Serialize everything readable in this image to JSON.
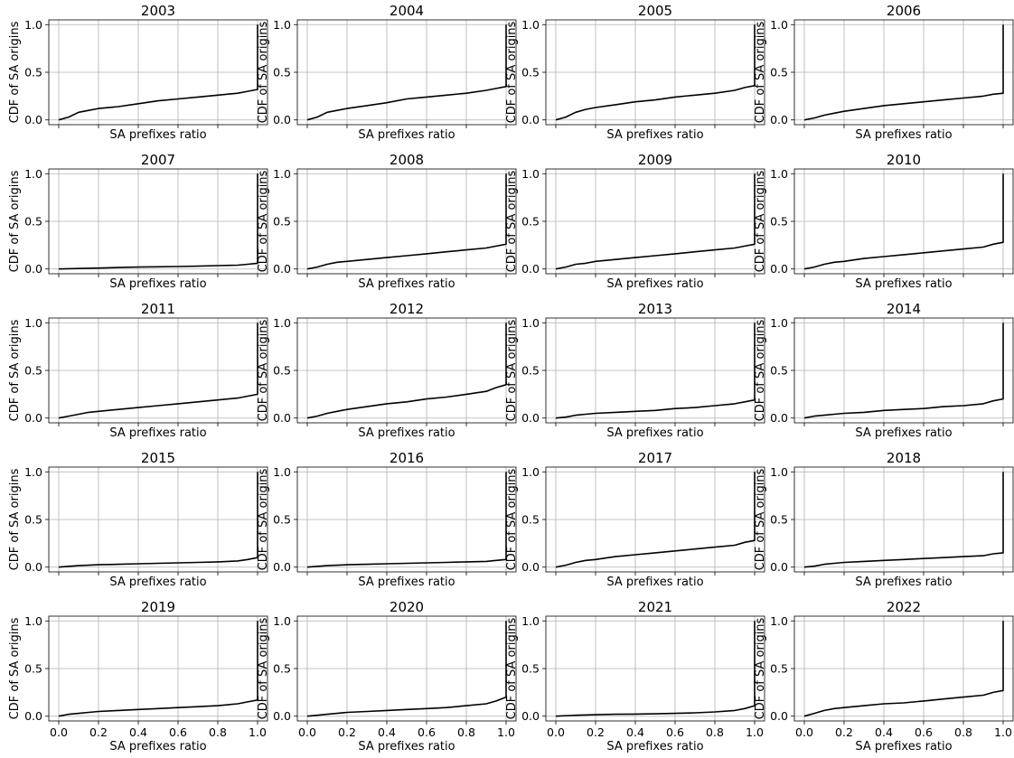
{
  "chart_data": [
    {
      "type": "line",
      "title": "2003",
      "xlabel": "SA prefixes ratio",
      "ylabel": "CDF of SA origins",
      "xlim": [
        0,
        1
      ],
      "ylim": [
        0,
        1
      ],
      "xticks": [
        "0.0",
        "0.2",
        "0.4",
        "0.6",
        "0.8",
        "1.0"
      ],
      "yticks": [
        "0.0",
        "0.5",
        "1.0"
      ],
      "grid": true,
      "x": [
        0.0,
        0.05,
        0.1,
        0.15,
        0.2,
        0.3,
        0.4,
        0.5,
        0.6,
        0.7,
        0.8,
        0.9,
        0.95,
        1.0,
        1.0
      ],
      "y": [
        0.0,
        0.03,
        0.08,
        0.1,
        0.12,
        0.14,
        0.17,
        0.2,
        0.22,
        0.24,
        0.26,
        0.28,
        0.3,
        0.32,
        1.0
      ]
    },
    {
      "type": "line",
      "title": "2004",
      "xlabel": "SA prefixes ratio",
      "ylabel": "CDF of SA origins",
      "xlim": [
        0,
        1
      ],
      "ylim": [
        0,
        1
      ],
      "xticks": [
        "0.0",
        "0.2",
        "0.4",
        "0.6",
        "0.8",
        "1.0"
      ],
      "yticks": [
        "0.0",
        "0.5",
        "1.0"
      ],
      "grid": true,
      "x": [
        0.0,
        0.05,
        0.1,
        0.15,
        0.2,
        0.3,
        0.4,
        0.5,
        0.6,
        0.7,
        0.8,
        0.9,
        0.95,
        1.0,
        1.0
      ],
      "y": [
        0.0,
        0.03,
        0.08,
        0.1,
        0.12,
        0.15,
        0.18,
        0.22,
        0.24,
        0.26,
        0.28,
        0.31,
        0.33,
        0.35,
        1.0
      ]
    },
    {
      "type": "line",
      "title": "2005",
      "xlabel": "SA prefixes ratio",
      "ylabel": "CDF of SA origins",
      "xlim": [
        0,
        1
      ],
      "ylim": [
        0,
        1
      ],
      "xticks": [
        "0.0",
        "0.2",
        "0.4",
        "0.6",
        "0.8",
        "1.0"
      ],
      "yticks": [
        "0.0",
        "0.5",
        "1.0"
      ],
      "grid": true,
      "x": [
        0.0,
        0.05,
        0.1,
        0.15,
        0.2,
        0.3,
        0.4,
        0.5,
        0.6,
        0.7,
        0.8,
        0.9,
        0.95,
        1.0,
        1.0
      ],
      "y": [
        0.0,
        0.03,
        0.08,
        0.11,
        0.13,
        0.16,
        0.19,
        0.21,
        0.24,
        0.26,
        0.28,
        0.31,
        0.34,
        0.36,
        1.0
      ]
    },
    {
      "type": "line",
      "title": "2006",
      "xlabel": "SA prefixes ratio",
      "ylabel": "CDF of SA origins",
      "xlim": [
        0,
        1
      ],
      "ylim": [
        0,
        1
      ],
      "xticks": [
        "0.0",
        "0.2",
        "0.4",
        "0.6",
        "0.8",
        "1.0"
      ],
      "yticks": [
        "0.0",
        "0.5",
        "1.0"
      ],
      "grid": true,
      "x": [
        0.0,
        0.05,
        0.1,
        0.15,
        0.2,
        0.3,
        0.4,
        0.5,
        0.6,
        0.7,
        0.8,
        0.9,
        0.95,
        1.0,
        1.0
      ],
      "y": [
        0.0,
        0.02,
        0.05,
        0.07,
        0.09,
        0.12,
        0.15,
        0.17,
        0.19,
        0.21,
        0.23,
        0.25,
        0.27,
        0.28,
        1.0
      ]
    },
    {
      "type": "line",
      "title": "2007",
      "xlabel": "SA prefixes ratio",
      "ylabel": "CDF of SA origins",
      "xlim": [
        0,
        1
      ],
      "ylim": [
        0,
        1
      ],
      "xticks": [
        "0.0",
        "0.2",
        "0.4",
        "0.6",
        "0.8",
        "1.0"
      ],
      "yticks": [
        "0.0",
        "0.5",
        "1.0"
      ],
      "grid": true,
      "x": [
        0.0,
        0.1,
        0.2,
        0.3,
        0.4,
        0.5,
        0.6,
        0.7,
        0.8,
        0.9,
        0.95,
        1.0,
        1.0
      ],
      "y": [
        0.0,
        0.005,
        0.01,
        0.015,
        0.02,
        0.023,
        0.026,
        0.03,
        0.035,
        0.04,
        0.05,
        0.06,
        1.0
      ]
    },
    {
      "type": "line",
      "title": "2008",
      "xlabel": "SA prefixes ratio",
      "ylabel": "CDF of SA origins",
      "xlim": [
        0,
        1
      ],
      "ylim": [
        0,
        1
      ],
      "xticks": [
        "0.0",
        "0.2",
        "0.4",
        "0.6",
        "0.8",
        "1.0"
      ],
      "yticks": [
        "0.0",
        "0.5",
        "1.0"
      ],
      "grid": true,
      "x": [
        0.0,
        0.05,
        0.1,
        0.15,
        0.2,
        0.3,
        0.4,
        0.5,
        0.6,
        0.7,
        0.8,
        0.9,
        0.95,
        1.0,
        1.0
      ],
      "y": [
        0.0,
        0.02,
        0.05,
        0.07,
        0.08,
        0.1,
        0.12,
        0.14,
        0.16,
        0.18,
        0.2,
        0.22,
        0.24,
        0.26,
        1.0
      ]
    },
    {
      "type": "line",
      "title": "2009",
      "xlabel": "SA prefixes ratio",
      "ylabel": "CDF of SA origins",
      "xlim": [
        0,
        1
      ],
      "ylim": [
        0,
        1
      ],
      "xticks": [
        "0.0",
        "0.2",
        "0.4",
        "0.6",
        "0.8",
        "1.0"
      ],
      "yticks": [
        "0.0",
        "0.5",
        "1.0"
      ],
      "grid": true,
      "x": [
        0.0,
        0.05,
        0.1,
        0.15,
        0.2,
        0.3,
        0.4,
        0.5,
        0.6,
        0.7,
        0.8,
        0.9,
        0.95,
        1.0,
        1.0
      ],
      "y": [
        0.0,
        0.02,
        0.05,
        0.06,
        0.08,
        0.1,
        0.12,
        0.14,
        0.16,
        0.18,
        0.2,
        0.22,
        0.24,
        0.26,
        1.0
      ]
    },
    {
      "type": "line",
      "title": "2010",
      "xlabel": "SA prefixes ratio",
      "ylabel": "CDF of SA origins",
      "xlim": [
        0,
        1
      ],
      "ylim": [
        0,
        1
      ],
      "xticks": [
        "0.0",
        "0.2",
        "0.4",
        "0.6",
        "0.8",
        "1.0"
      ],
      "yticks": [
        "0.0",
        "0.5",
        "1.0"
      ],
      "grid": true,
      "x": [
        0.0,
        0.05,
        0.1,
        0.15,
        0.2,
        0.3,
        0.4,
        0.5,
        0.6,
        0.7,
        0.8,
        0.9,
        0.95,
        1.0,
        1.0
      ],
      "y": [
        0.0,
        0.02,
        0.05,
        0.07,
        0.08,
        0.11,
        0.13,
        0.15,
        0.17,
        0.19,
        0.21,
        0.23,
        0.26,
        0.28,
        1.0
      ]
    },
    {
      "type": "line",
      "title": "2011",
      "xlabel": "SA prefixes ratio",
      "ylabel": "CDF of SA origins",
      "xlim": [
        0,
        1
      ],
      "ylim": [
        0,
        1
      ],
      "xticks": [
        "0.0",
        "0.2",
        "0.4",
        "0.6",
        "0.8",
        "1.0"
      ],
      "yticks": [
        "0.0",
        "0.5",
        "1.0"
      ],
      "grid": true,
      "x": [
        0.0,
        0.05,
        0.1,
        0.15,
        0.2,
        0.3,
        0.4,
        0.5,
        0.6,
        0.7,
        0.8,
        0.9,
        0.95,
        1.0,
        1.0
      ],
      "y": [
        0.0,
        0.02,
        0.04,
        0.06,
        0.07,
        0.09,
        0.11,
        0.13,
        0.15,
        0.17,
        0.19,
        0.21,
        0.23,
        0.25,
        1.0
      ]
    },
    {
      "type": "line",
      "title": "2012",
      "xlabel": "SA prefixes ratio",
      "ylabel": "CDF of SA origins",
      "xlim": [
        0,
        1
      ],
      "ylim": [
        0,
        1
      ],
      "xticks": [
        "0.0",
        "0.2",
        "0.4",
        "0.6",
        "0.8",
        "1.0"
      ],
      "yticks": [
        "0.0",
        "0.5",
        "1.0"
      ],
      "grid": true,
      "x": [
        0.0,
        0.05,
        0.1,
        0.15,
        0.2,
        0.3,
        0.4,
        0.5,
        0.6,
        0.7,
        0.8,
        0.9,
        0.95,
        1.0,
        1.0
      ],
      "y": [
        0.0,
        0.02,
        0.05,
        0.07,
        0.09,
        0.12,
        0.15,
        0.17,
        0.2,
        0.22,
        0.25,
        0.28,
        0.32,
        0.35,
        1.0
      ]
    },
    {
      "type": "line",
      "title": "2013",
      "xlabel": "SA prefixes ratio",
      "ylabel": "CDF of SA origins",
      "xlim": [
        0,
        1
      ],
      "ylim": [
        0,
        1
      ],
      "xticks": [
        "0.0",
        "0.2",
        "0.4",
        "0.6",
        "0.8",
        "1.0"
      ],
      "yticks": [
        "0.0",
        "0.5",
        "1.0"
      ],
      "grid": true,
      "x": [
        0.0,
        0.05,
        0.1,
        0.15,
        0.2,
        0.3,
        0.4,
        0.5,
        0.6,
        0.7,
        0.8,
        0.9,
        0.95,
        1.0,
        1.0
      ],
      "y": [
        0.0,
        0.01,
        0.03,
        0.04,
        0.05,
        0.06,
        0.07,
        0.08,
        0.1,
        0.11,
        0.13,
        0.15,
        0.17,
        0.19,
        1.0
      ]
    },
    {
      "type": "line",
      "title": "2014",
      "xlabel": "SA prefixes ratio",
      "ylabel": "CDF of SA origins",
      "xlim": [
        0,
        1
      ],
      "ylim": [
        0,
        1
      ],
      "xticks": [
        "0.0",
        "0.2",
        "0.4",
        "0.6",
        "0.8",
        "1.0"
      ],
      "yticks": [
        "0.0",
        "0.5",
        "1.0"
      ],
      "grid": true,
      "x": [
        0.0,
        0.05,
        0.1,
        0.15,
        0.2,
        0.3,
        0.4,
        0.5,
        0.6,
        0.7,
        0.8,
        0.9,
        0.95,
        1.0,
        1.0
      ],
      "y": [
        0.0,
        0.02,
        0.03,
        0.04,
        0.05,
        0.06,
        0.08,
        0.09,
        0.1,
        0.12,
        0.13,
        0.15,
        0.18,
        0.2,
        1.0
      ]
    },
    {
      "type": "line",
      "title": "2015",
      "xlabel": "SA prefixes ratio",
      "ylabel": "CDF of SA origins",
      "xlim": [
        0,
        1
      ],
      "ylim": [
        0,
        1
      ],
      "xticks": [
        "0.0",
        "0.2",
        "0.4",
        "0.6",
        "0.8",
        "1.0"
      ],
      "yticks": [
        "0.0",
        "0.5",
        "1.0"
      ],
      "grid": true,
      "x": [
        0.0,
        0.1,
        0.2,
        0.3,
        0.4,
        0.5,
        0.6,
        0.7,
        0.8,
        0.9,
        0.95,
        1.0,
        1.0
      ],
      "y": [
        0.0,
        0.015,
        0.025,
        0.03,
        0.035,
        0.04,
        0.045,
        0.05,
        0.055,
        0.065,
        0.08,
        0.1,
        1.0
      ]
    },
    {
      "type": "line",
      "title": "2016",
      "xlabel": "SA prefixes ratio",
      "ylabel": "CDF of SA origins",
      "xlim": [
        0,
        1
      ],
      "ylim": [
        0,
        1
      ],
      "xticks": [
        "0.0",
        "0.2",
        "0.4",
        "0.6",
        "0.8",
        "1.0"
      ],
      "yticks": [
        "0.0",
        "0.5",
        "1.0"
      ],
      "grid": true,
      "x": [
        0.0,
        0.1,
        0.2,
        0.3,
        0.4,
        0.5,
        0.6,
        0.7,
        0.8,
        0.9,
        0.95,
        1.0,
        1.0
      ],
      "y": [
        0.0,
        0.015,
        0.025,
        0.03,
        0.035,
        0.04,
        0.045,
        0.05,
        0.055,
        0.06,
        0.07,
        0.08,
        1.0
      ]
    },
    {
      "type": "line",
      "title": "2017",
      "xlabel": "SA prefixes ratio",
      "ylabel": "CDF of SA origins",
      "xlim": [
        0,
        1
      ],
      "ylim": [
        0,
        1
      ],
      "xticks": [
        "0.0",
        "0.2",
        "0.4",
        "0.6",
        "0.8",
        "1.0"
      ],
      "yticks": [
        "0.0",
        "0.5",
        "1.0"
      ],
      "grid": true,
      "x": [
        0.0,
        0.05,
        0.1,
        0.15,
        0.2,
        0.3,
        0.4,
        0.5,
        0.6,
        0.7,
        0.8,
        0.9,
        0.95,
        1.0,
        1.0
      ],
      "y": [
        0.0,
        0.02,
        0.05,
        0.07,
        0.08,
        0.11,
        0.13,
        0.15,
        0.17,
        0.19,
        0.21,
        0.23,
        0.26,
        0.28,
        1.0
      ]
    },
    {
      "type": "line",
      "title": "2018",
      "xlabel": "SA prefixes ratio",
      "ylabel": "CDF of SA origins",
      "xlim": [
        0,
        1
      ],
      "ylim": [
        0,
        1
      ],
      "xticks": [
        "0.0",
        "0.2",
        "0.4",
        "0.6",
        "0.8",
        "1.0"
      ],
      "yticks": [
        "0.0",
        "0.5",
        "1.0"
      ],
      "grid": true,
      "x": [
        0.0,
        0.05,
        0.1,
        0.15,
        0.2,
        0.3,
        0.4,
        0.5,
        0.6,
        0.7,
        0.8,
        0.9,
        0.95,
        1.0,
        1.0
      ],
      "y": [
        0.0,
        0.01,
        0.03,
        0.04,
        0.05,
        0.06,
        0.07,
        0.08,
        0.09,
        0.1,
        0.11,
        0.12,
        0.14,
        0.15,
        1.0
      ]
    },
    {
      "type": "line",
      "title": "2019",
      "xlabel": "SA prefixes ratio",
      "ylabel": "CDF of SA origins",
      "xlim": [
        0,
        1
      ],
      "ylim": [
        0,
        1
      ],
      "xticks": [
        "0.0",
        "0.2",
        "0.4",
        "0.6",
        "0.8",
        "1.0"
      ],
      "yticks": [
        "0.0",
        "0.5",
        "1.0"
      ],
      "grid": true,
      "x": [
        0.0,
        0.05,
        0.1,
        0.15,
        0.2,
        0.3,
        0.4,
        0.5,
        0.6,
        0.7,
        0.8,
        0.9,
        0.95,
        1.0,
        1.0
      ],
      "y": [
        0.0,
        0.02,
        0.03,
        0.04,
        0.05,
        0.06,
        0.07,
        0.08,
        0.09,
        0.1,
        0.11,
        0.13,
        0.15,
        0.17,
        1.0
      ]
    },
    {
      "type": "line",
      "title": "2020",
      "xlabel": "SA prefixes ratio",
      "ylabel": "CDF of SA origins",
      "xlim": [
        0,
        1
      ],
      "ylim": [
        0,
        1
      ],
      "xticks": [
        "0.0",
        "0.2",
        "0.4",
        "0.6",
        "0.8",
        "1.0"
      ],
      "yticks": [
        "0.0",
        "0.5",
        "1.0"
      ],
      "grid": true,
      "x": [
        0.0,
        0.05,
        0.1,
        0.15,
        0.2,
        0.3,
        0.4,
        0.5,
        0.6,
        0.7,
        0.8,
        0.9,
        0.95,
        1.0,
        1.0
      ],
      "y": [
        0.0,
        0.01,
        0.02,
        0.03,
        0.04,
        0.05,
        0.06,
        0.07,
        0.08,
        0.09,
        0.11,
        0.13,
        0.16,
        0.2,
        1.0
      ]
    },
    {
      "type": "line",
      "title": "2021",
      "xlabel": "SA prefixes ratio",
      "ylabel": "CDF of SA origins",
      "xlim": [
        0,
        1
      ],
      "ylim": [
        0,
        1
      ],
      "xticks": [
        "0.0",
        "0.2",
        "0.4",
        "0.6",
        "0.8",
        "1.0"
      ],
      "yticks": [
        "0.0",
        "0.5",
        "1.0"
      ],
      "grid": true,
      "x": [
        0.0,
        0.1,
        0.2,
        0.3,
        0.4,
        0.5,
        0.6,
        0.7,
        0.8,
        0.9,
        0.95,
        1.0,
        1.0
      ],
      "y": [
        0.0,
        0.01,
        0.015,
        0.02,
        0.022,
        0.025,
        0.03,
        0.035,
        0.045,
        0.06,
        0.08,
        0.11,
        1.0
      ]
    },
    {
      "type": "line",
      "title": "2022",
      "xlabel": "SA prefixes ratio",
      "ylabel": "CDF of SA origins",
      "xlim": [
        0,
        1
      ],
      "ylim": [
        0,
        1
      ],
      "xticks": [
        "0.0",
        "0.2",
        "0.4",
        "0.6",
        "0.8",
        "1.0"
      ],
      "yticks": [
        "0.0",
        "0.5",
        "1.0"
      ],
      "grid": true,
      "x": [
        0.0,
        0.05,
        0.1,
        0.15,
        0.2,
        0.3,
        0.4,
        0.5,
        0.6,
        0.7,
        0.8,
        0.9,
        0.95,
        1.0,
        1.0
      ],
      "y": [
        0.0,
        0.03,
        0.06,
        0.08,
        0.09,
        0.11,
        0.13,
        0.14,
        0.16,
        0.18,
        0.2,
        0.22,
        0.25,
        0.27,
        1.0
      ]
    }
  ],
  "style": {
    "line_color": "#000000",
    "grid_color": "#b0b0b0",
    "axes_color": "#000000",
    "background": "#ffffff"
  }
}
